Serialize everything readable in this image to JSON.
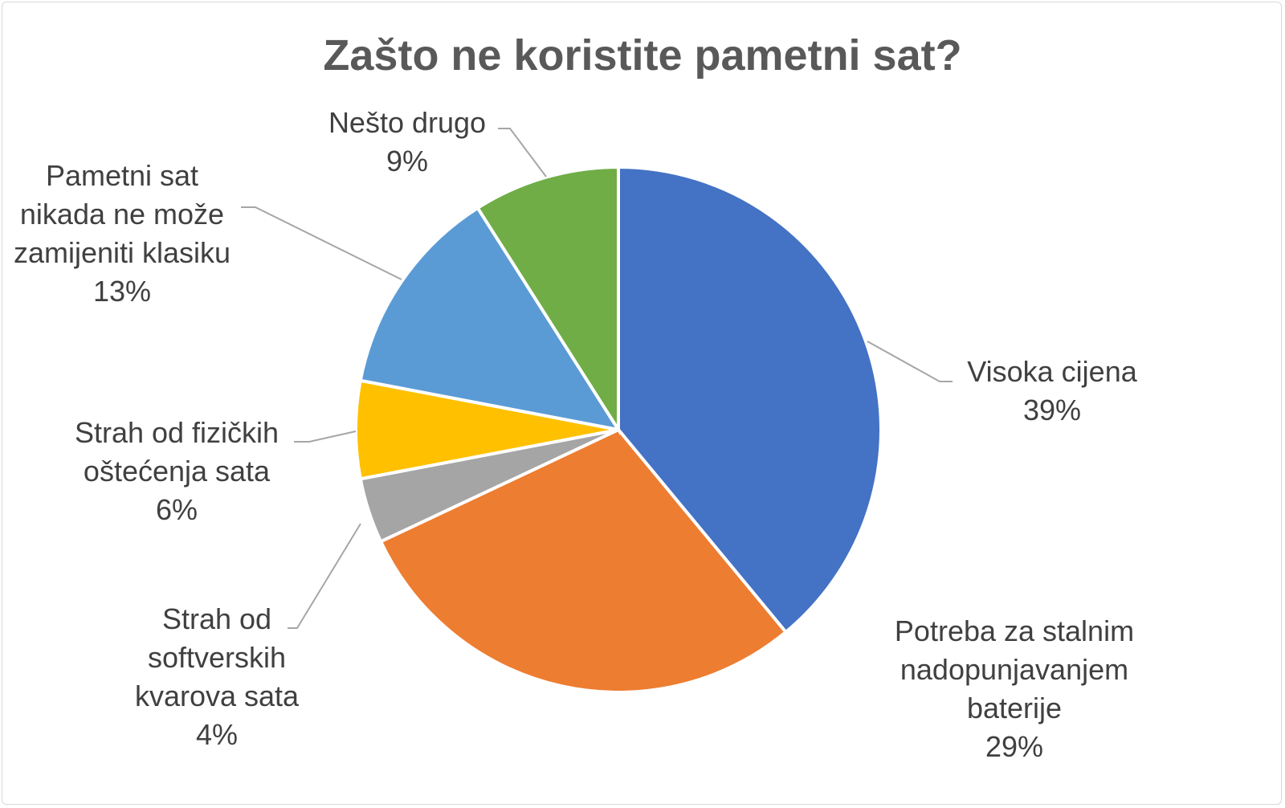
{
  "chart_data": {
    "type": "pie",
    "title": "Zašto ne koristite pametni sat?",
    "categories": [
      "Visoka cijena",
      "Potreba za stalnim nadopunjavanjem baterije",
      "Strah od softverskih kvarova sata",
      "Strah od fizičkih oštećenja sata",
      "Pametni sat nikada ne može zamijeniti klasiku",
      "Nešto drugo"
    ],
    "values": [
      39,
      29,
      4,
      6,
      13,
      9
    ],
    "value_labels": [
      "39%",
      "29%",
      "4%",
      "6%",
      "13%",
      "9%"
    ],
    "colors": [
      "#4472c4",
      "#ed7d31",
      "#a5a5a5",
      "#ffc000",
      "#5b9bd5",
      "#70ad47"
    ]
  }
}
